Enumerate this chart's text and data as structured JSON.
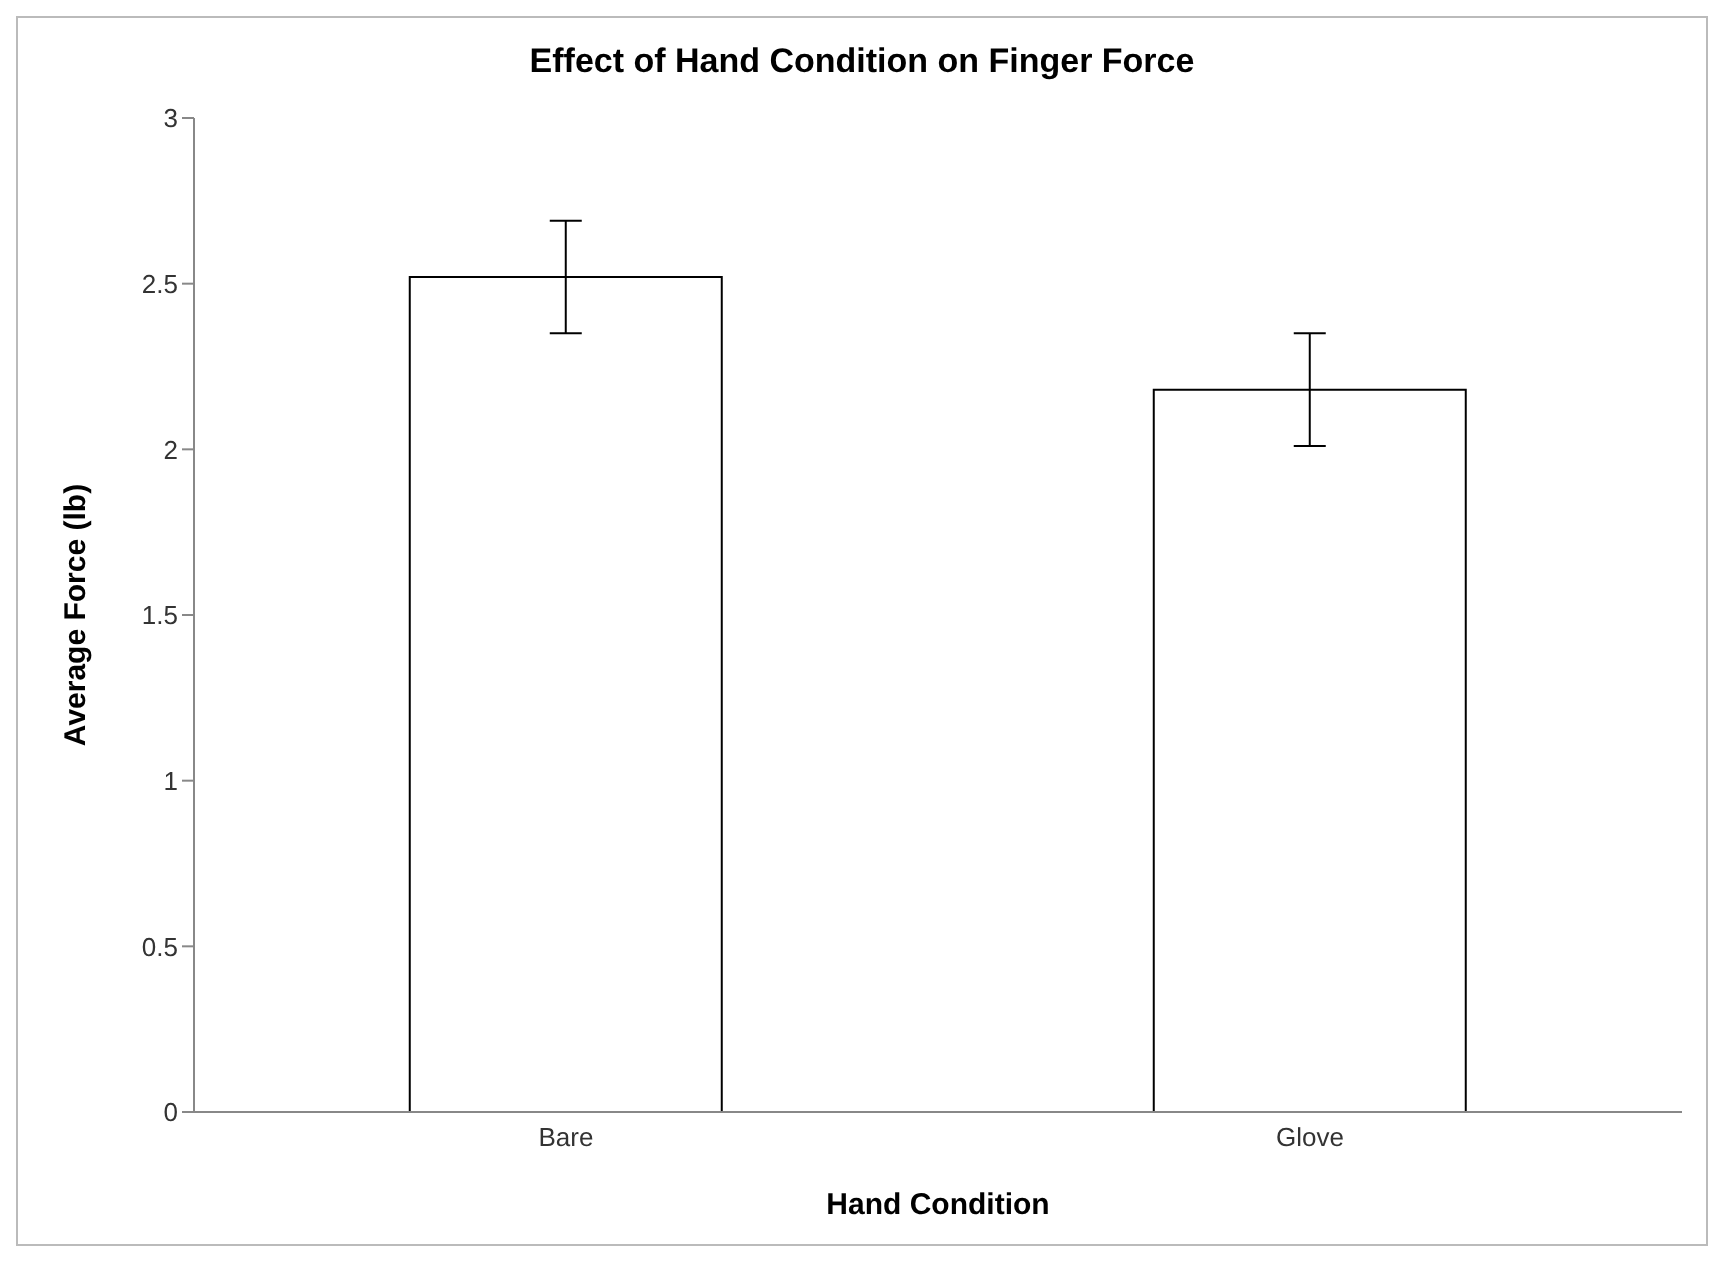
{
  "chart_data": {
    "type": "bar",
    "title": "Effect of Hand Condition on Finger Force",
    "xlabel": "Hand Condition",
    "ylabel": "Average Force (lb)",
    "categories": [
      "Bare",
      "Glove"
    ],
    "values": [
      2.52,
      2.18
    ],
    "errors": [
      0.17,
      0.17
    ],
    "color": "#ffffff",
    "ylim": [
      0,
      3
    ],
    "yticks": [
      0,
      0.5,
      1,
      1.5,
      2,
      2.5,
      3
    ],
    "grid": false,
    "legend": false
  }
}
